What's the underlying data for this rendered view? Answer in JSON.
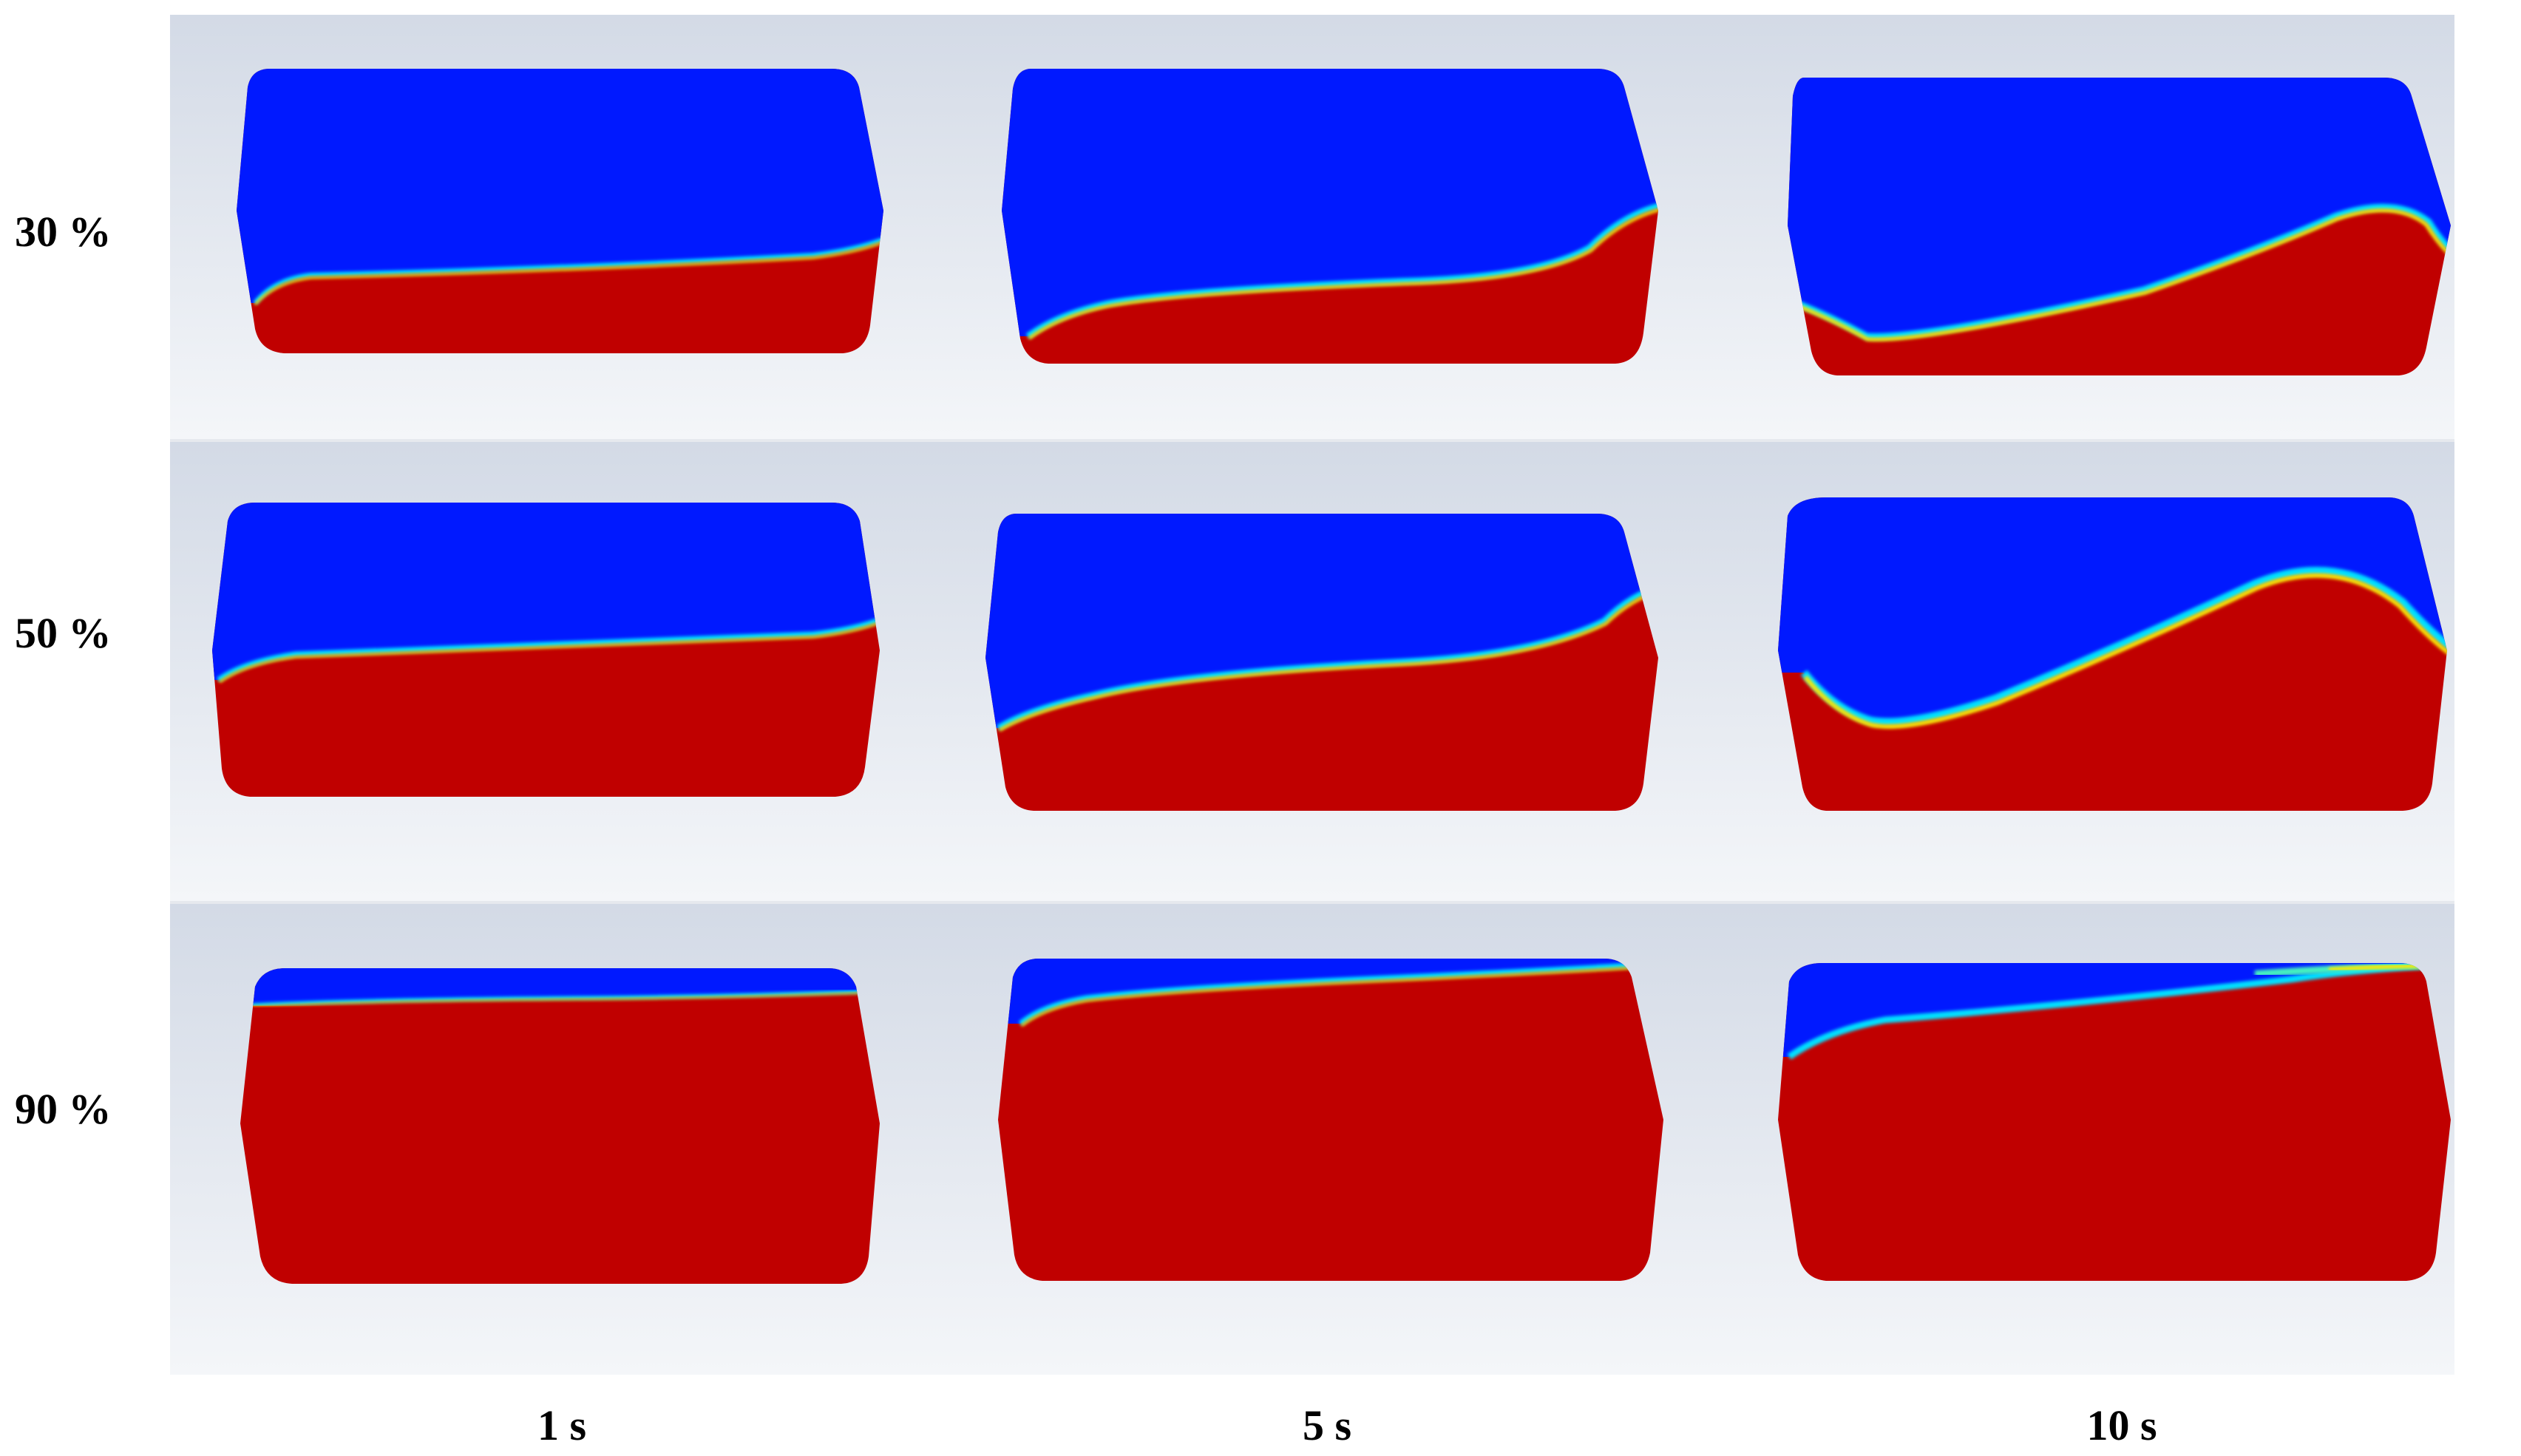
{
  "figure": {
    "row_labels": [
      "30 %",
      "50 %",
      "90 %"
    ],
    "column_labels": [
      "1 s",
      "5 s",
      "10 s"
    ],
    "colors": {
      "gas_phase": "#0019ff",
      "liquid_phase": "#c00000",
      "interface_cyan": "#00e0ff",
      "interface_yellow": "#ffe600",
      "background_top": "#d3dae6",
      "background_bottom": "#f4f6f9"
    },
    "panels": [
      {
        "row": 0,
        "col": 0,
        "fill_ratio": "30 %",
        "time": "1 s"
      },
      {
        "row": 0,
        "col": 1,
        "fill_ratio": "30 %",
        "time": "5 s"
      },
      {
        "row": 0,
        "col": 2,
        "fill_ratio": "30 %",
        "time": "10 s"
      },
      {
        "row": 1,
        "col": 0,
        "fill_ratio": "50 %",
        "time": "1 s"
      },
      {
        "row": 1,
        "col": 1,
        "fill_ratio": "50 %",
        "time": "5 s"
      },
      {
        "row": 1,
        "col": 2,
        "fill_ratio": "50 %",
        "time": "10 s"
      },
      {
        "row": 2,
        "col": 0,
        "fill_ratio": "90 %",
        "time": "1 s"
      },
      {
        "row": 2,
        "col": 1,
        "fill_ratio": "90 %",
        "time": "5 s"
      },
      {
        "row": 2,
        "col": 2,
        "fill_ratio": "90 %",
        "time": "10 s"
      }
    ]
  }
}
